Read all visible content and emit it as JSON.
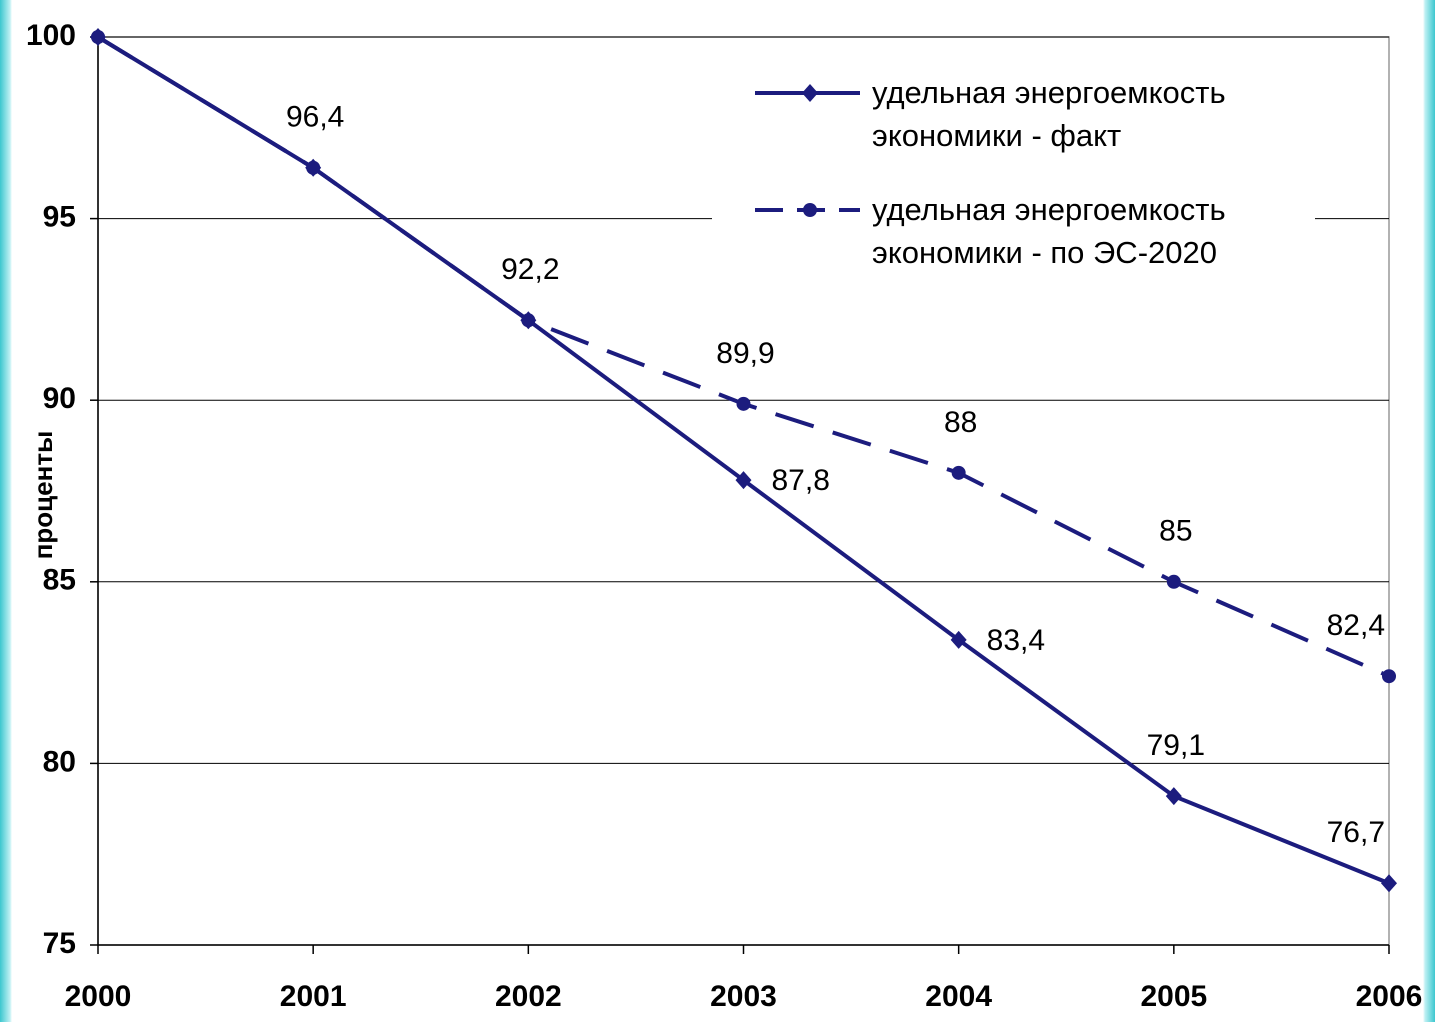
{
  "chart_data": {
    "type": "line",
    "y_label": "проценты",
    "categories": [
      "2000",
      "2001",
      "2002",
      "2003",
      "2004",
      "2005",
      "2006"
    ],
    "series": [
      {
        "name": "удельная энергоемкость экономики - факт",
        "color": "#1c1c7e",
        "dash": false,
        "marker": "diamond",
        "values": [
          100,
          96.4,
          92.2,
          87.8,
          83.4,
          79.1,
          76.7
        ],
        "value_labels": [
          null,
          "96,4",
          "92,2",
          "87,8",
          "83,4",
          "79,1",
          "76,7"
        ]
      },
      {
        "name": "удельная энергоемкость экономики - по ЭС-2020",
        "color": "#1c1c7e",
        "dash": true,
        "marker": "circle",
        "values": [
          100,
          96.4,
          92.2,
          89.9,
          88,
          85,
          82.4
        ],
        "value_labels": [
          null,
          null,
          null,
          "89,9",
          "88",
          "85",
          "82,4"
        ]
      }
    ],
    "ylim": [
      75,
      100
    ],
    "yticks": [
      75,
      80,
      85,
      90,
      95,
      100
    ],
    "grid": true,
    "legend": "top-right"
  }
}
